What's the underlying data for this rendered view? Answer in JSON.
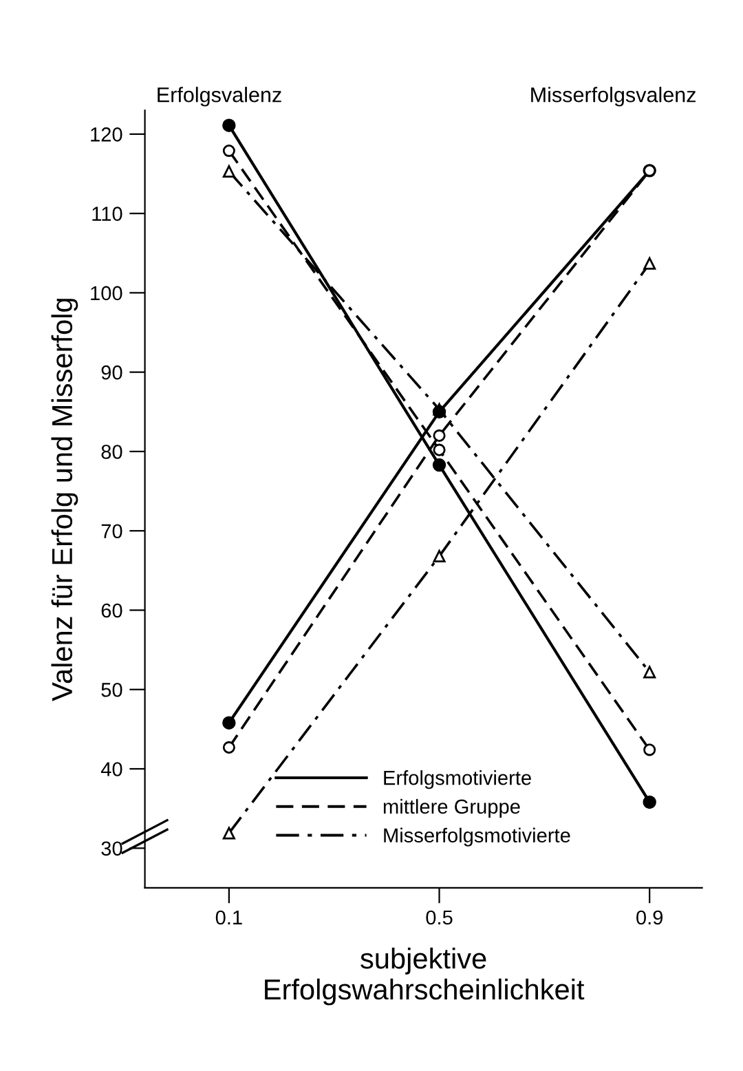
{
  "chart_data": {
    "type": "line",
    "xlabel": "subjektive\nErfolgswahrscheinlichkeit",
    "ylabel": "Valenz für Erfolg und Misserfolg",
    "x": [
      0.1,
      0.5,
      0.9
    ],
    "series": [
      {
        "name": "Erfolgsmotivierte",
        "color": "#000000",
        "values": [
          121.1,
          78.3,
          35.8
        ],
        "line_style": "solid",
        "marker": "circle"
      },
      {
        "name": "mittlere Gruppe",
        "color": "#000000",
        "values": [
          117.9,
          80.2,
          42.4
        ],
        "line_style": "dashed",
        "marker": "circle"
      },
      {
        "name": "Misserfolgsmotivierte",
        "color": "#000000",
        "values": [
          115.3,
          85.3,
          52.2
        ],
        "line_style": "dashdot",
        "marker": "triangle"
      },
      {
        "color": "#000000",
        "values": [
          45.8,
          85.0,
          115.4
        ],
        "line_style": "solid",
        "marker": "circle"
      },
      {
        "color": "#000000",
        "values": [
          42.7,
          82.0,
          115.4
        ],
        "line_style": "dashed",
        "marker": "circle"
      },
      {
        "color": "#000000",
        "values": [
          31.9,
          66.8,
          103.7
        ],
        "line_style": "dashdot",
        "marker": "triangle"
      }
    ],
    "xlim": [
      -0.06,
      1.0
    ],
    "ylim": [
      25,
      123
    ],
    "xticks": [
      0.1,
      0.5,
      0.9
    ],
    "yticks": [
      30,
      40,
      50,
      60,
      70,
      80,
      90,
      100,
      110,
      120
    ],
    "annotations": [
      "Erfolgsvalenz",
      "Misserfolgsvalenz"
    ],
    "legend": "bottom",
    "grid": false
  }
}
